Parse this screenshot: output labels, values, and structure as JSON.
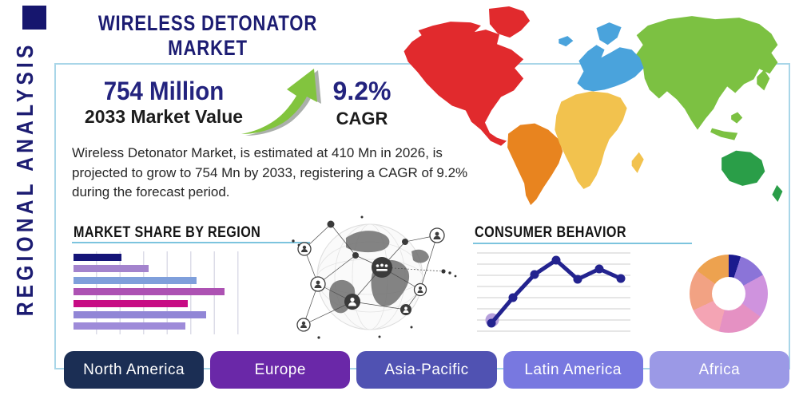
{
  "header": {
    "title": "WIRELESS DETONATOR MARKET"
  },
  "sidebar_label": "REGIONAL ANALYSIS",
  "stats": {
    "market_value": "754 Million",
    "market_value_label": "2033 Market Value",
    "cagr": "9.2%",
    "cagr_label": "CAGR"
  },
  "description": "Wireless Detonator Market, is estimated at 410 Mn in 2026, is projected to grow to 754 Mn by 2033, registering a CAGR of 9.2% during the forecast period.",
  "colors": {
    "panel_border": "#a9d6e8",
    "heading_underline": "#7cc4de",
    "title_navy": "#1c1c72",
    "stat_navy": "#23237e",
    "arrow_green": "#82c43e"
  },
  "chart_data": [
    {
      "type": "bar",
      "orientation": "horizontal",
      "title": "MARKET SHARE BY REGION",
      "categories": [
        "",
        "",
        "",
        "",
        "",
        "",
        ""
      ],
      "values": [
        26,
        41,
        67,
        82,
        62,
        72,
        61
      ],
      "xlim": [
        0,
        100
      ],
      "xlabel": "",
      "ylabel": "",
      "grid": "vertical",
      "legend": "none",
      "bar_colors": [
        "#141478",
        "#a383cd",
        "#7f9fdb",
        "#ad52b3",
        "#c70c84",
        "#9186d6",
        "#9e8bd9"
      ]
    },
    {
      "type": "line",
      "title": "CONSUMER BEHAVIOR",
      "x": [
        1,
        2,
        3,
        4,
        5,
        6,
        7
      ],
      "values": [
        12,
        44,
        73,
        91,
        67,
        80,
        68
      ],
      "ylim": [
        0,
        100
      ],
      "xlabel": "",
      "ylabel": "",
      "grid": "horizontal",
      "gridline_count": 8,
      "legend": "none",
      "line_color": "#23238f",
      "first_point_halo_color": "#b6a0dc"
    },
    {
      "type": "pie",
      "donut": true,
      "title": "",
      "slices": [
        {
          "value": 5,
          "color": "#1a1a8e"
        },
        {
          "value": 12,
          "color": "#8b74d8"
        },
        {
          "value": 18,
          "color": "#cf93de"
        },
        {
          "value": 19,
          "color": "#e591c3"
        },
        {
          "value": 14,
          "color": "#f4a4b4"
        },
        {
          "value": 17,
          "color": "#f2a283"
        },
        {
          "value": 15,
          "color": "#eda24f"
        }
      ],
      "legend": "none"
    }
  ],
  "regions": [
    {
      "label": "North America",
      "color": "#1b2e54"
    },
    {
      "label": "Europe",
      "color": "#6a28a8"
    },
    {
      "label": "Asia-Pacific",
      "color": "#5052b2"
    },
    {
      "label": "Latin America",
      "color": "#7878e0"
    },
    {
      "label": "Africa",
      "color": "#9b99e6"
    }
  ],
  "map": {
    "continents": {
      "north_america": "#e12a2d",
      "greenland": "#e12a2d",
      "south_america": "#e8841f",
      "europe": "#4aa3dc",
      "iceland": "#4aa3dc",
      "africa": "#f2c24e",
      "asia": "#7cc142",
      "australia": "#2a9e48"
    }
  }
}
